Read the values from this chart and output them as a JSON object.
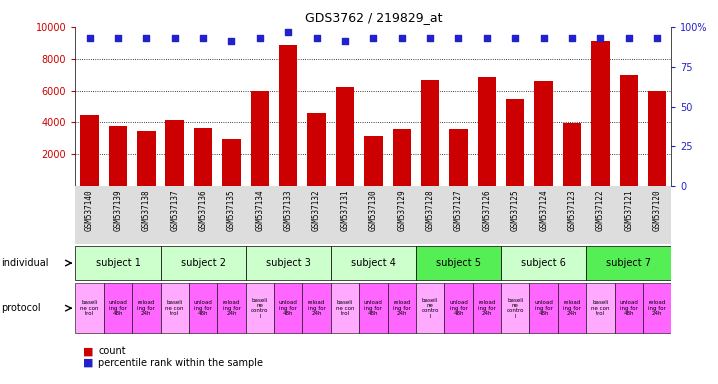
{
  "title": "GDS3762 / 219829_at",
  "samples": [
    "GSM537140",
    "GSM537139",
    "GSM537138",
    "GSM537137",
    "GSM537136",
    "GSM537135",
    "GSM537134",
    "GSM537133",
    "GSM537132",
    "GSM537131",
    "GSM537130",
    "GSM537129",
    "GSM537128",
    "GSM537127",
    "GSM537126",
    "GSM537125",
    "GSM537124",
    "GSM537123",
    "GSM537122",
    "GSM537121",
    "GSM537120"
  ],
  "counts": [
    4450,
    3750,
    3450,
    4150,
    3650,
    2950,
    5950,
    8850,
    4600,
    6250,
    3150,
    3600,
    6650,
    3600,
    6850,
    5500,
    6600,
    3950,
    9100,
    6950,
    5950
  ],
  "percentile_ranks": [
    93,
    93,
    93,
    93,
    93,
    91,
    93,
    97,
    93,
    91,
    93,
    93,
    93,
    93,
    93,
    93,
    93,
    93,
    93,
    93,
    93
  ],
  "bar_color": "#cc0000",
  "dot_color": "#2222cc",
  "ylim_left": [
    0,
    10000
  ],
  "ylim_right": [
    0,
    100
  ],
  "yticks_left": [
    2000,
    4000,
    6000,
    8000,
    10000
  ],
  "yticks_right": [
    0,
    25,
    50,
    75,
    100
  ],
  "subjects": [
    {
      "label": "subject 1",
      "start": 0,
      "end": 3
    },
    {
      "label": "subject 2",
      "start": 3,
      "end": 6
    },
    {
      "label": "subject 3",
      "start": 6,
      "end": 9
    },
    {
      "label": "subject 4",
      "start": 9,
      "end": 12
    },
    {
      "label": "subject 5",
      "start": 12,
      "end": 15
    },
    {
      "label": "subject 6",
      "start": 15,
      "end": 18
    },
    {
      "label": "subject 7",
      "start": 18,
      "end": 21
    }
  ],
  "subject_colors": [
    "#ccffcc",
    "#ccffcc",
    "#ccffcc",
    "#ccffcc",
    "#55ee55",
    "#ccffcc",
    "#55ee55"
  ],
  "protocol_texts": [
    "baseli\nne con\ntrol",
    "unload\ning for\n48h",
    "reload\ning for\n24h",
    "baseli\nne con\ntrol",
    "unload\ning for\n48h",
    "reload\ning for\n24h",
    "baseli\nne\ncontro\nl",
    "unload\ning for\n48h",
    "reload\ning for\n24h",
    "baseli\nne con\ntrol",
    "unload\ning for\n48h",
    "reload\ning for\n24h",
    "baseli\nne\ncontro\nl",
    "unload\ning for\n48h",
    "reload\ning for\n24h",
    "baseli\nne\ncontro\nl",
    "unload\ning for\n48h",
    "reload\ning for\n24h",
    "baseli\nne con\ntrol",
    "unload\ning for\n48h",
    "reload\ning for\n24h"
  ],
  "protocol_colors": [
    "#ffaaff",
    "#ff66ff",
    "#ff66ff",
    "#ffaaff",
    "#ff66ff",
    "#ff66ff",
    "#ffaaff",
    "#ff66ff",
    "#ff66ff",
    "#ffaaff",
    "#ff66ff",
    "#ff66ff",
    "#ffaaff",
    "#ff66ff",
    "#ff66ff",
    "#ffaaff",
    "#ff66ff",
    "#ff66ff",
    "#ffaaff",
    "#ff66ff",
    "#ff66ff"
  ],
  "axis_color_left": "#cc0000",
  "axis_color_right": "#2222cc",
  "bg_color": "#ffffff",
  "label_fontsize": 7,
  "tick_fontsize": 7,
  "sample_fontsize": 5.5,
  "subject_fontsize": 7,
  "protocol_fontsize": 4.0
}
